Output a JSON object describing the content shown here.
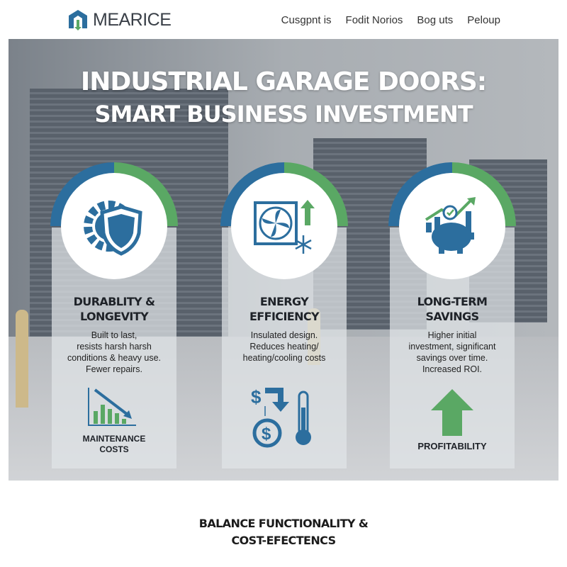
{
  "brand": {
    "name": "MEARICE",
    "logo_colors": [
      "#2c6e9e",
      "#5aa864"
    ]
  },
  "nav": {
    "items": [
      "Cusgpnt is",
      "Fodit Norios",
      "Bog uts",
      "Peloup"
    ]
  },
  "hero": {
    "title_line1": "INDUSTRIAL GARAGE DOORS:",
    "title_line2": "SMART BUSINESS INVESTMENT"
  },
  "colors": {
    "blue": "#2c6e9e",
    "green": "#5aa864"
  },
  "cards": [
    {
      "icon": "gear-shield-icon",
      "title1": "DURABLITY &",
      "title2": "LONGEVITY",
      "desc": [
        "Built to last,",
        "resists harsh harsh",
        "conditions & heavy use.",
        "Fewer repairs."
      ],
      "bottom_icon": "declining-bar-chart-icon",
      "caption1": "MAINTENANCE",
      "caption2": "COSTS"
    },
    {
      "icon": "fan-snowflake-icon",
      "title1": "ENERGY",
      "title2": "EFFICIENCY",
      "desc": [
        "Insulated design.",
        "Reduces heating/",
        "heating/cooling costs"
      ],
      "bottom_icon": "dollar-thermometer-icon"
    },
    {
      "icon": "piggy-bank-growth-icon",
      "title1": "LONG-TERM",
      "title2": "SAVINGS",
      "desc": [
        "Higher initial",
        "investment, significant",
        "savings over time.",
        "Increased ROI."
      ],
      "bottom_icon": "up-arrow-icon",
      "caption1": "PROFITABILITY"
    }
  ],
  "footer": {
    "line1": "BALANCE FUNCTIONALITY &",
    "line2": "COST-EFECTENCS"
  }
}
